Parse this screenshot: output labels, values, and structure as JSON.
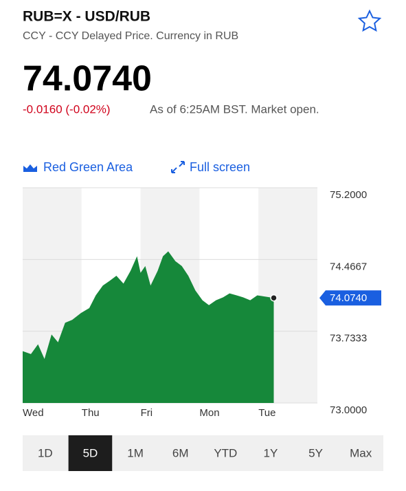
{
  "header": {
    "title": "RUB=X - USD/RUB",
    "subtitle": "CCY - CCY Delayed Price. Currency in RUB",
    "price": "74.0740",
    "change": "-0.0160 (-0.02%)",
    "as_of": "As of 6:25AM BST. Market open."
  },
  "toolbar": {
    "chart_style": "Red Green Area",
    "full_screen": "Full screen"
  },
  "chart_data": {
    "type": "area",
    "x": [
      0,
      0.14,
      0.26,
      0.37,
      0.49,
      0.6,
      0.72,
      0.84,
      0.99,
      1.13,
      1.24,
      1.36,
      1.48,
      1.59,
      1.71,
      1.83,
      1.94,
      2.0,
      2.08,
      2.17,
      2.29,
      2.38,
      2.47,
      2.59,
      2.7,
      2.81,
      2.93,
      3.05,
      3.16,
      3.28,
      3.4,
      3.51,
      3.63,
      3.74,
      3.86,
      3.98,
      4.26
    ],
    "series": [
      {
        "color": "#16883a",
        "values": [
          73.53,
          73.5,
          73.6,
          73.45,
          73.7,
          73.62,
          73.82,
          73.85,
          73.92,
          73.97,
          74.1,
          74.2,
          74.25,
          74.3,
          74.22,
          74.35,
          74.5,
          74.33,
          74.4,
          74.2,
          74.35,
          74.5,
          74.55,
          74.45,
          74.4,
          74.3,
          74.15,
          74.05,
          74.0,
          74.05,
          74.08,
          74.12,
          74.1,
          74.08,
          74.05,
          74.1,
          74.074
        ]
      }
    ],
    "xlim": [
      0,
      5
    ],
    "xticks": [
      {
        "value": 0,
        "label": "Wed"
      },
      {
        "value": 1,
        "label": "Thu"
      },
      {
        "value": 2,
        "label": "Fri"
      },
      {
        "value": 3,
        "label": "Mon"
      },
      {
        "value": 4,
        "label": "Tue"
      }
    ],
    "ylim": [
      73,
      75.2
    ],
    "yticks": [
      {
        "value": 73,
        "label": "73.0000"
      },
      {
        "value": 73.7333,
        "label": "73.7333"
      },
      {
        "value": 74.4667,
        "label": "74.4667"
      },
      {
        "value": 75.2,
        "label": "75.2000"
      }
    ],
    "price_marker": {
      "value": 74.074,
      "label": "74.0740"
    },
    "grid": true
  },
  "periods": {
    "items": [
      "1D",
      "5D",
      "1M",
      "6M",
      "YTD",
      "1Y",
      "5Y",
      "Max"
    ],
    "selected": 1
  }
}
